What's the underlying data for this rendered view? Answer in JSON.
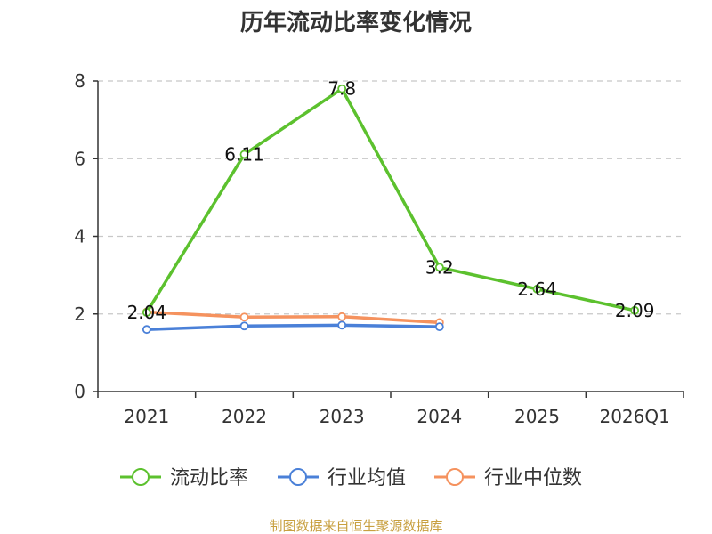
{
  "chart_data": {
    "type": "line",
    "title": "历年流动比率变化情况",
    "categories": [
      "2021",
      "2022",
      "2023",
      "2024",
      "2025",
      "2026Q1"
    ],
    "ylim": [
      0,
      8
    ],
    "yticks": [
      0,
      2,
      4,
      6,
      8
    ],
    "grid": true,
    "legend_position": "bottom",
    "series": [
      {
        "name": "流动比率",
        "color": "#5cc12e",
        "values": [
          2.04,
          6.11,
          7.8,
          3.2,
          2.64,
          2.09
        ],
        "labels": [
          "2.04",
          "6.11",
          "7.8",
          "3.2",
          "2.64",
          "2.09"
        ]
      },
      {
        "name": "行业均值",
        "color": "#4a80d8",
        "values": [
          1.6,
          1.69,
          1.71,
          1.67,
          null,
          null
        ]
      },
      {
        "name": "行业中位数",
        "color": "#f5925e",
        "values": [
          2.05,
          1.92,
          1.93,
          1.78,
          null,
          null
        ]
      }
    ],
    "source": "制图数据来自恒生聚源数据库"
  }
}
